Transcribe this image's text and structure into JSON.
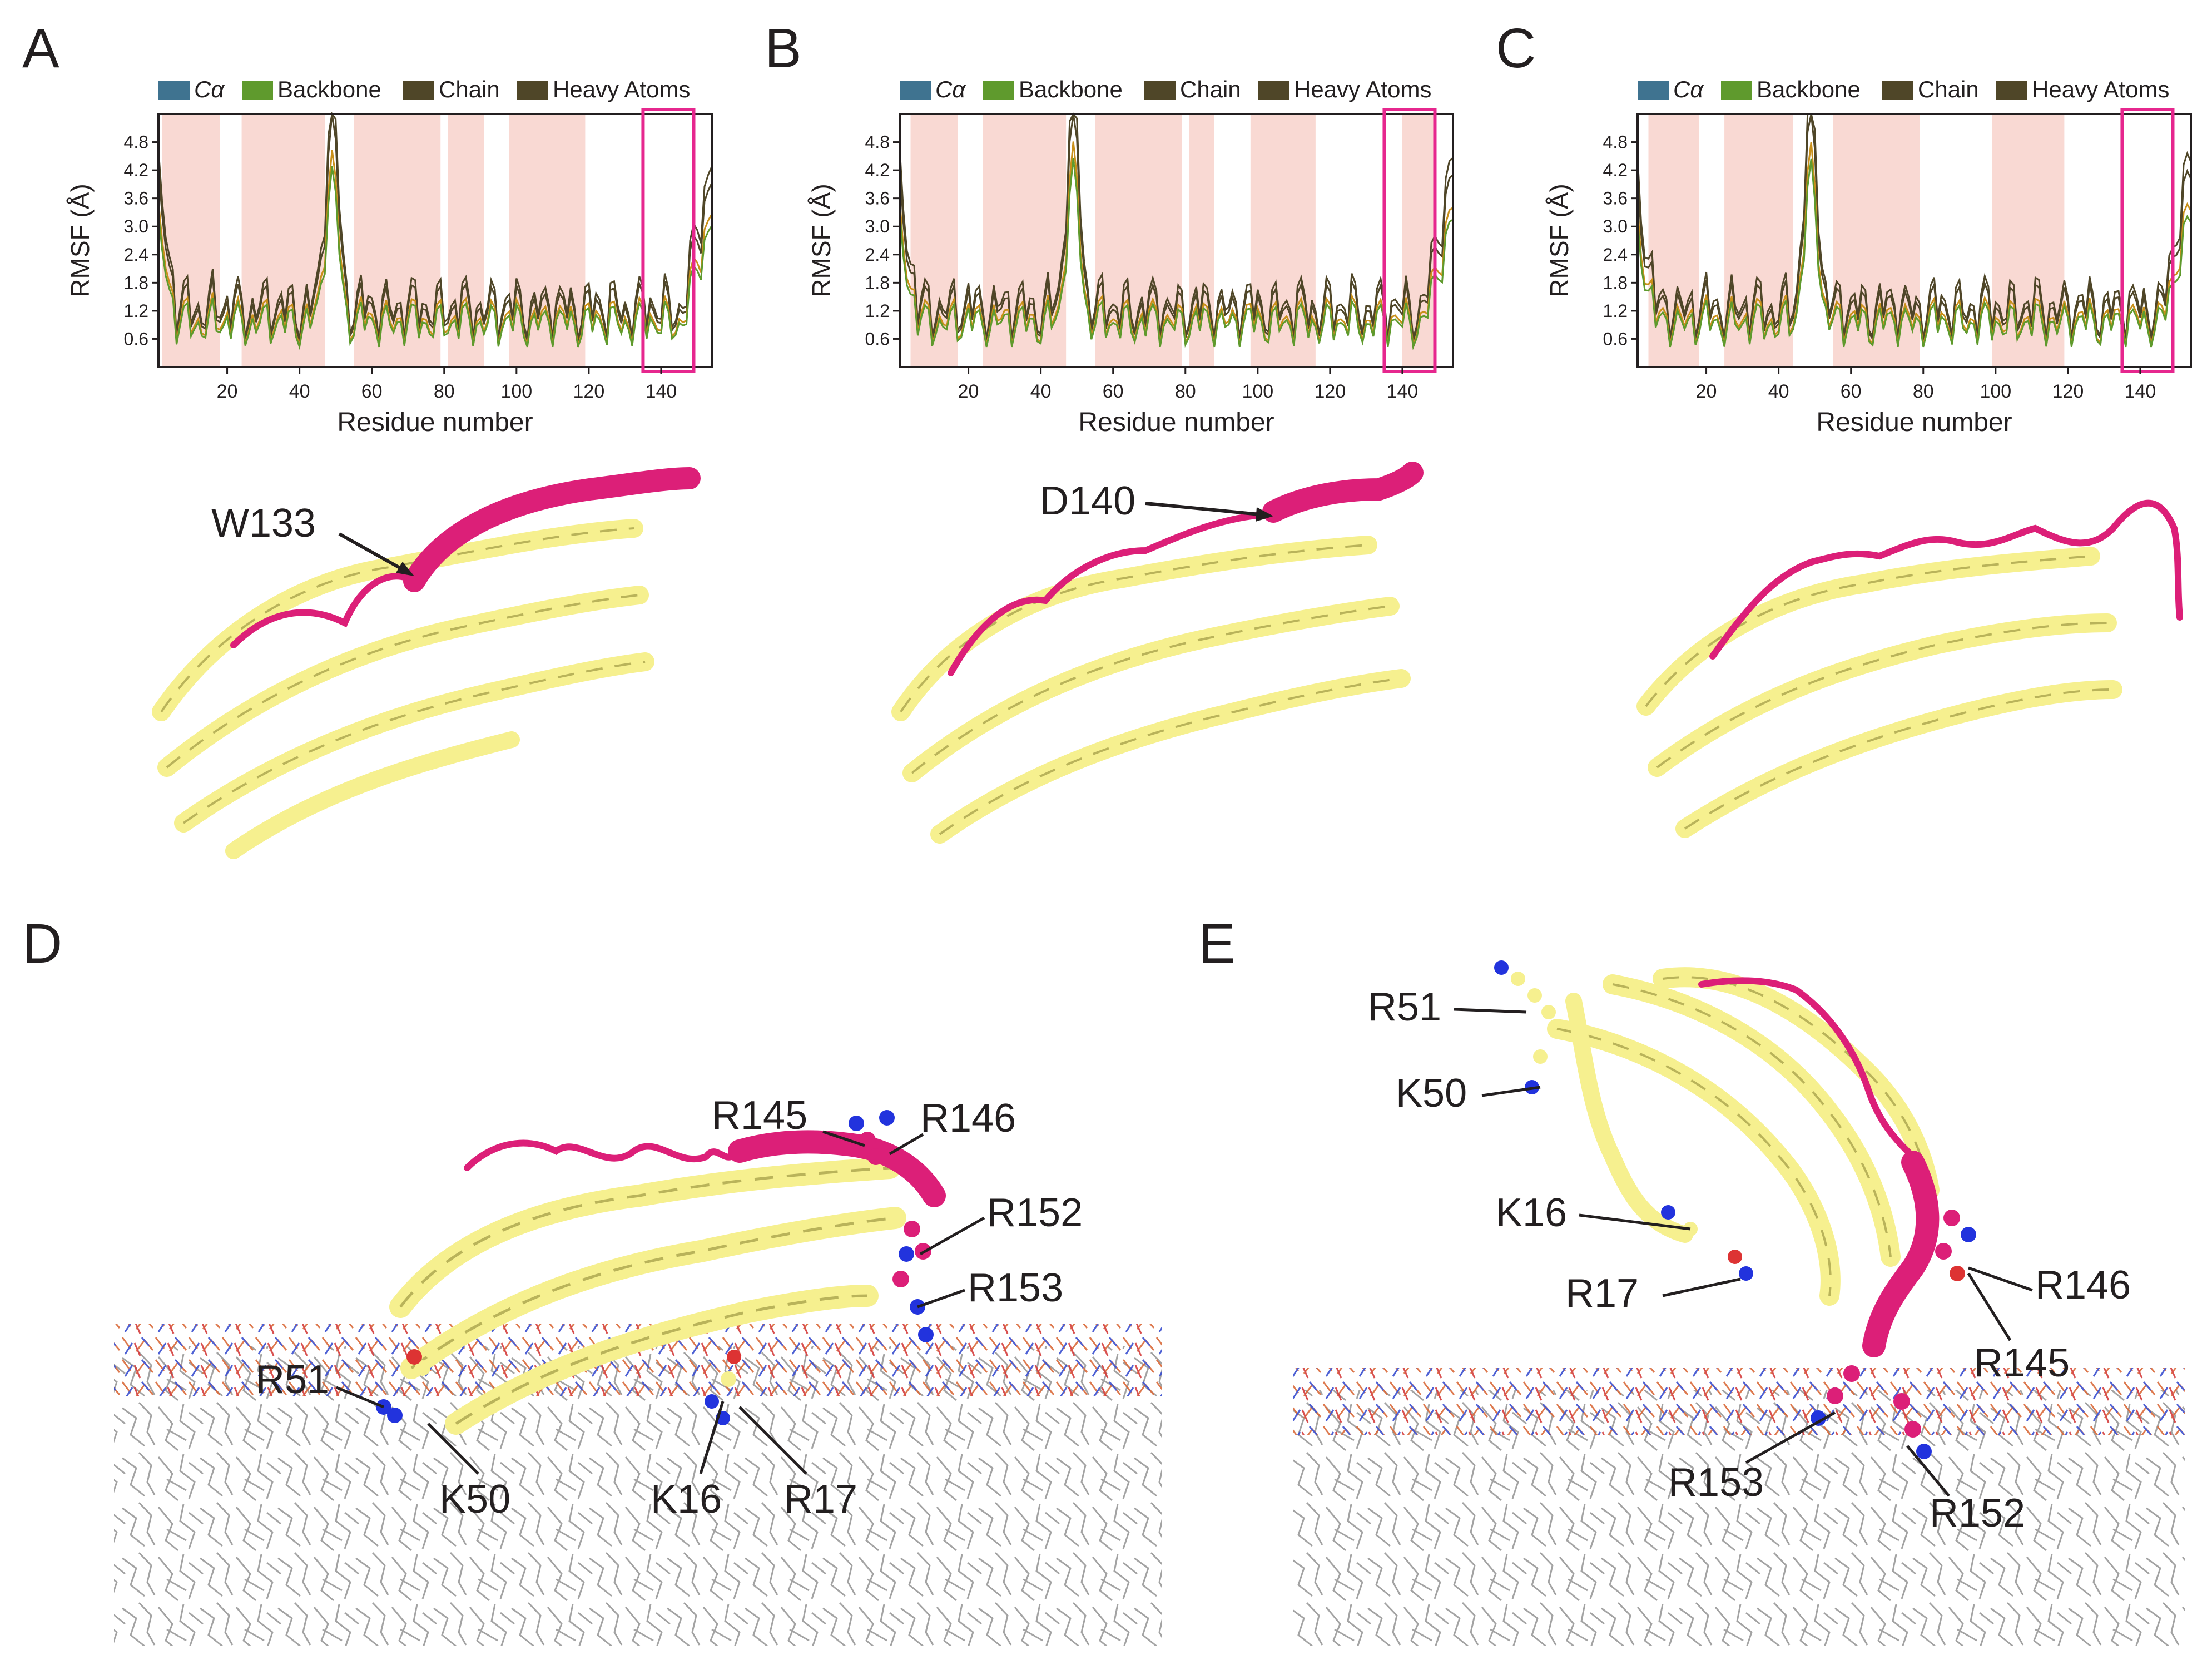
{
  "panel_labels": {
    "A": "A",
    "B": "B",
    "C": "C",
    "D": "D",
    "E": "E"
  },
  "colors": {
    "ca": "#3f7390",
    "backbone": "#5f9a2d",
    "chain": "#4f4628",
    "heavy_atoms": "#4f4628",
    "shade": "#f9d9d3",
    "highlight_box": "#e6278e",
    "helix": "#f6f08f",
    "helix_edge": "#b9b35a",
    "c_terminal": "#dc1f78",
    "nitrogen": "#2233dd",
    "oxygen": "#dd3333",
    "lipid_tail": "#9b9b9b"
  },
  "chart_data": [
    {
      "type": "line",
      "panel": "A",
      "legend": [
        "Cα",
        "Backbone",
        "Chain",
        "Heavy Atoms"
      ],
      "xlabel": "Residue number",
      "ylabel": "RMSF (Å)",
      "xticks": [
        "20",
        "40",
        "60",
        "80",
        "100",
        "120",
        "140"
      ],
      "yticks": [
        "0.6",
        "1.2",
        "1.8",
        "2.4",
        "3.0",
        "3.6",
        "4.2",
        "4.8"
      ],
      "xlim": [
        1,
        154
      ],
      "ylim": [
        0,
        5.4
      ],
      "shaded_regions": [
        [
          2,
          18
        ],
        [
          24,
          47
        ],
        [
          55,
          79
        ],
        [
          81,
          91
        ],
        [
          98,
          119
        ]
      ],
      "highlight_box": [
        135,
        149
      ],
      "peak_residue": 49
    },
    {
      "type": "line",
      "panel": "B",
      "legend": [
        "Cα",
        "Backbone",
        "Chain",
        "Heavy Atoms"
      ],
      "xlabel": "Residue number",
      "ylabel": "RMSF (Å)",
      "xticks": [
        "20",
        "40",
        "60",
        "80",
        "100",
        "120",
        "140"
      ],
      "yticks": [
        "0.6",
        "1.2",
        "1.8",
        "2.4",
        "3.0",
        "3.6",
        "4.2",
        "4.8"
      ],
      "xlim": [
        1,
        154
      ],
      "ylim": [
        0,
        5.4
      ],
      "shaded_regions": [
        [
          4,
          17
        ],
        [
          24,
          47
        ],
        [
          55,
          79
        ],
        [
          81,
          88
        ],
        [
          98,
          116
        ],
        [
          140,
          149
        ]
      ],
      "highlight_box": [
        135,
        149
      ],
      "peak_residue": 49
    },
    {
      "type": "line",
      "panel": "C",
      "legend": [
        "Cα",
        "Backbone",
        "Chain",
        "Heavy Atoms"
      ],
      "xlabel": "Residue number",
      "ylabel": "RMSF (Å)",
      "xticks": [
        "20",
        "40",
        "60",
        "80",
        "100",
        "120",
        "140"
      ],
      "yticks": [
        "0.6",
        "1.2",
        "1.8",
        "2.4",
        "3.0",
        "3.6",
        "4.2",
        "4.8"
      ],
      "xlim": [
        1,
        154
      ],
      "ylim": [
        0,
        5.4
      ],
      "shaded_regions": [
        [
          4,
          18
        ],
        [
          25,
          44
        ],
        [
          55,
          79
        ],
        [
          99,
          119
        ]
      ],
      "highlight_box": [
        135,
        149
      ],
      "peak_residue": 49
    }
  ],
  "structure_labels": {
    "A": [
      "W133"
    ],
    "B": [
      "D140"
    ],
    "D": [
      "R145",
      "R146",
      "R152",
      "R153",
      "R51",
      "K50",
      "K16",
      "R17"
    ],
    "E": [
      "R51",
      "K50",
      "K16",
      "R17",
      "R146",
      "R145",
      "R153",
      "R152"
    ]
  }
}
